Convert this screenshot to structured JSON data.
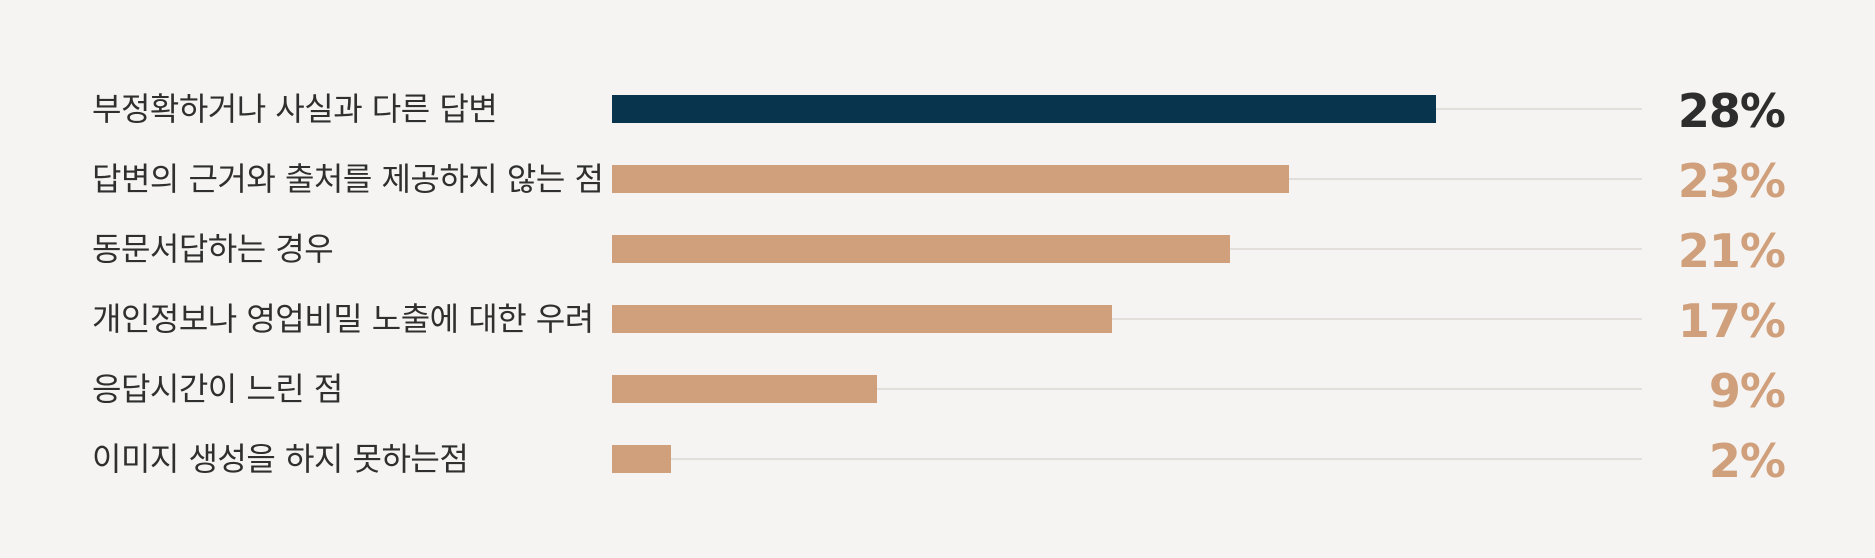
{
  "chart_data": {
    "type": "bar",
    "orientation": "horizontal",
    "categories": [
      "부정확하거나 사실과 다른 답변",
      "답변의 근거와 출처를 제공하지 않는 점",
      "동문서답하는 경우",
      "개인정보나 영업비밀 노출에 대한 우려",
      "응답시간이 느린 점",
      "이미지 생성을 하지 못하는점"
    ],
    "values": [
      28,
      23,
      21,
      17,
      9,
      2
    ],
    "value_labels": [
      "28%",
      "23%",
      "21%",
      "17%",
      "9%",
      "2%"
    ],
    "xlim": [
      0,
      35
    ],
    "grid": false,
    "title": "",
    "xlabel": "",
    "ylabel": ""
  },
  "colors": {
    "background": "#f5f4f2",
    "highlight_bar": "#08344d",
    "bar": "#cfa07b",
    "highlight_value": "#2d2d2d",
    "value": "#cfa07b",
    "category_text": "#2f2f2f",
    "track": "#e2dfdb"
  }
}
